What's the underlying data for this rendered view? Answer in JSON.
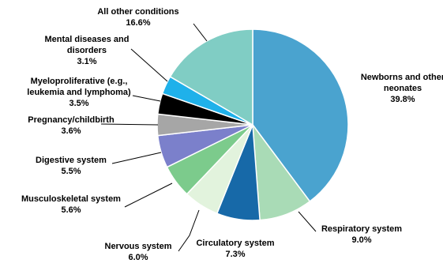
{
  "chart_data": {
    "type": "pie",
    "categories": [
      "Newborns and other neonates",
      "Respiratory system",
      "Circulatory system",
      "Nervous system",
      "Musculoskeletal system",
      "Digestive system",
      "Pregnancy/childbirth",
      "Myeloproliferative (e.g., leukemia and lymphoma)",
      "Mental diseases and disorders",
      "All other conditions"
    ],
    "values": [
      39.8,
      9.0,
      7.3,
      6.0,
      5.6,
      5.5,
      3.6,
      3.5,
      3.1,
      16.6
    ],
    "value_labels": [
      "39.8%",
      "9.0%",
      "7.3%",
      "6.0%",
      "5.6%",
      "5.5%",
      "3.6%",
      "3.5%",
      "3.1%",
      "16.6%"
    ],
    "colors": [
      "#4aa3cf",
      "#a9dbb6",
      "#1769a8",
      "#e2f3dd",
      "#7ccb8c",
      "#7b80cb",
      "#a6a6a6",
      "#000000",
      "#1fb1ea",
      "#80cdc4"
    ]
  }
}
